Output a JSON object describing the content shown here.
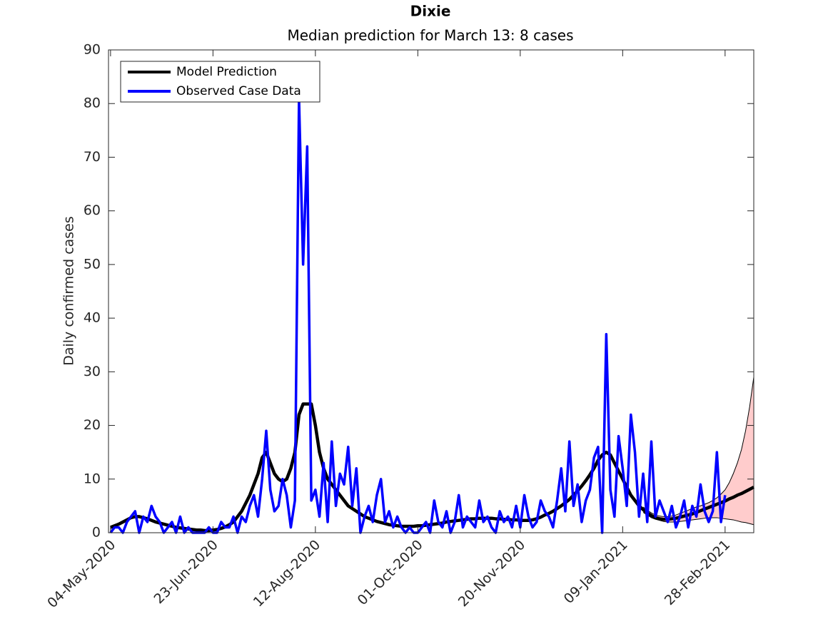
{
  "chart_data": {
    "type": "line",
    "title": "Dixie",
    "subtitle": "Median prediction for March 13: 8 cases",
    "ylabel": "Daily confirmed cases",
    "legend": "northwest",
    "xlim": [
      "2020-05-03",
      "2021-03-14"
    ],
    "xticks": [
      {
        "value": "2020-05-04",
        "label": "04-May-2020"
      },
      {
        "value": "2020-06-23",
        "label": "23-Jun-2020"
      },
      {
        "value": "2020-08-12",
        "label": "12-Aug-2020"
      },
      {
        "value": "2020-10-01",
        "label": "01-Oct-2020"
      },
      {
        "value": "2020-11-20",
        "label": "20-Nov-2020"
      },
      {
        "value": "2021-01-09",
        "label": "09-Jan-2021"
      },
      {
        "value": "2021-02-28",
        "label": "28-Feb-2021"
      }
    ],
    "ylim": [
      0,
      90
    ],
    "yticks": [
      0,
      10,
      20,
      30,
      40,
      50,
      60,
      70,
      80,
      90
    ],
    "x": [
      "2020-05-04",
      "2020-05-06",
      "2020-05-08",
      "2020-05-10",
      "2020-05-12",
      "2020-05-14",
      "2020-05-16",
      "2020-05-18",
      "2020-05-20",
      "2020-05-22",
      "2020-05-24",
      "2020-05-26",
      "2020-05-28",
      "2020-05-30",
      "2020-06-01",
      "2020-06-03",
      "2020-06-05",
      "2020-06-07",
      "2020-06-09",
      "2020-06-11",
      "2020-06-13",
      "2020-06-15",
      "2020-06-17",
      "2020-06-19",
      "2020-06-21",
      "2020-06-23",
      "2020-06-25",
      "2020-06-27",
      "2020-06-29",
      "2020-07-01",
      "2020-07-03",
      "2020-07-05",
      "2020-07-07",
      "2020-07-09",
      "2020-07-11",
      "2020-07-13",
      "2020-07-15",
      "2020-07-17",
      "2020-07-19",
      "2020-07-21",
      "2020-07-23",
      "2020-07-25",
      "2020-07-27",
      "2020-07-29",
      "2020-07-31",
      "2020-08-02",
      "2020-08-04",
      "2020-08-06",
      "2020-08-08",
      "2020-08-10",
      "2020-08-12",
      "2020-08-14",
      "2020-08-16",
      "2020-08-18",
      "2020-08-20",
      "2020-08-22",
      "2020-08-24",
      "2020-08-26",
      "2020-08-28",
      "2020-08-30",
      "2020-09-01",
      "2020-09-03",
      "2020-09-05",
      "2020-09-07",
      "2020-09-09",
      "2020-09-11",
      "2020-09-13",
      "2020-09-15",
      "2020-09-17",
      "2020-09-19",
      "2020-09-21",
      "2020-09-23",
      "2020-09-25",
      "2020-09-27",
      "2020-09-29",
      "2020-10-01",
      "2020-10-03",
      "2020-10-05",
      "2020-10-07",
      "2020-10-09",
      "2020-10-11",
      "2020-10-13",
      "2020-10-15",
      "2020-10-17",
      "2020-10-19",
      "2020-10-21",
      "2020-10-23",
      "2020-10-25",
      "2020-10-27",
      "2020-10-29",
      "2020-10-31",
      "2020-11-02",
      "2020-11-04",
      "2020-11-06",
      "2020-11-08",
      "2020-11-10",
      "2020-11-12",
      "2020-11-14",
      "2020-11-16",
      "2020-11-18",
      "2020-11-20",
      "2020-11-22",
      "2020-11-24",
      "2020-11-26",
      "2020-11-28",
      "2020-11-30",
      "2020-12-02",
      "2020-12-04",
      "2020-12-06",
      "2020-12-08",
      "2020-12-10",
      "2020-12-12",
      "2020-12-14",
      "2020-12-16",
      "2020-12-18",
      "2020-12-20",
      "2020-12-22",
      "2020-12-24",
      "2020-12-26",
      "2020-12-28",
      "2020-12-30",
      "2021-01-01",
      "2021-01-03",
      "2021-01-05",
      "2021-01-07",
      "2021-01-09",
      "2021-01-11",
      "2021-01-13",
      "2021-01-15",
      "2021-01-17",
      "2021-01-19",
      "2021-01-21",
      "2021-01-23",
      "2021-01-25",
      "2021-01-27",
      "2021-01-29",
      "2021-01-31",
      "2021-02-02",
      "2021-02-04",
      "2021-02-06",
      "2021-02-08",
      "2021-02-10",
      "2021-02-12",
      "2021-02-14",
      "2021-02-16",
      "2021-02-18",
      "2021-02-20",
      "2021-02-22",
      "2021-02-24",
      "2021-02-26",
      "2021-02-28",
      "2021-03-02",
      "2021-03-04",
      "2021-03-06",
      "2021-03-08",
      "2021-03-10",
      "2021-03-12",
      "2021-03-14"
    ],
    "series": [
      {
        "name": "Model Prediction",
        "color": "#000000",
        "values": [
          1,
          1.3,
          1.6,
          2,
          2.4,
          2.8,
          3,
          3,
          2.8,
          2.6,
          2.3,
          2,
          1.8,
          1.6,
          1.4,
          1.2,
          1,
          0.9,
          0.8,
          0.7,
          0.6,
          0.5,
          0.5,
          0.4,
          0.4,
          0.5,
          0.6,
          0.8,
          1.1,
          1.5,
          2,
          3,
          4,
          5.5,
          7,
          9,
          11,
          14,
          15,
          13,
          11,
          10,
          9.5,
          10,
          12,
          15,
          22,
          24,
          24,
          24,
          20,
          15,
          12,
          10,
          9,
          8,
          7,
          6,
          5,
          4.5,
          4,
          3.5,
          3,
          2.7,
          2.4,
          2.1,
          1.9,
          1.7,
          1.5,
          1.4,
          1.3,
          1.2,
          1.2,
          1.2,
          1.2,
          1.3,
          1.3,
          1.4,
          1.5,
          1.6,
          1.7,
          1.8,
          2,
          2.1,
          2.2,
          2.3,
          2.4,
          2.5,
          2.6,
          2.6,
          2.7,
          2.7,
          2.7,
          2.7,
          2.6,
          2.6,
          2.5,
          2.5,
          2.4,
          2.4,
          2.3,
          2.3,
          2.3,
          2.4,
          2.6,
          2.9,
          3.3,
          3.6,
          4,
          4.5,
          5,
          5.6,
          6.2,
          7,
          7.8,
          8.7,
          9.7,
          10.8,
          12,
          13.5,
          14.5,
          15,
          14.5,
          13,
          11.5,
          10,
          8.5,
          7,
          6,
          5,
          4.3,
          3.7,
          3.2,
          2.8,
          2.6,
          2.5,
          2.5,
          2.6,
          2.7,
          2.9,
          3.1,
          3.3,
          3.5,
          3.8,
          4.1,
          4.4,
          4.7,
          5,
          5.3,
          5.6,
          5.9,
          6.3,
          6.6,
          7,
          7.3,
          7.7,
          8.1,
          8.5
        ]
      },
      {
        "name": "Observed Case Data",
        "color": "#0000ff",
        "values": [
          0,
          1,
          1,
          0,
          2,
          3,
          4,
          0,
          3,
          2,
          5,
          3,
          2,
          0,
          1,
          2,
          0,
          3,
          0,
          1,
          0,
          0,
          0,
          0,
          1,
          0,
          0,
          2,
          1,
          1,
          3,
          0,
          3,
          2,
          5,
          7,
          3,
          10,
          19,
          8,
          4,
          5,
          10,
          7,
          1,
          6,
          81,
          50,
          72,
          6,
          8,
          3,
          13,
          2,
          17,
          5,
          11,
          9,
          16,
          5,
          12,
          0,
          3,
          5,
          2,
          7,
          10,
          2,
          4,
          1,
          3,
          1,
          0,
          1,
          0,
          0,
          1,
          2,
          0,
          6,
          2,
          1,
          4,
          0,
          2,
          7,
          1,
          3,
          2,
          1,
          6,
          2,
          3,
          1,
          0,
          4,
          2,
          3,
          1,
          5,
          1,
          7,
          3,
          1,
          2,
          6,
          4,
          3,
          1,
          6,
          12,
          4,
          17,
          5,
          9,
          2,
          6,
          8,
          14,
          16,
          0,
          37,
          8,
          3,
          18,
          12,
          5,
          22,
          15,
          3,
          11,
          2,
          17,
          3,
          6,
          4,
          2,
          5,
          1,
          3,
          6,
          1,
          5,
          3,
          9,
          4,
          2,
          4,
          15,
          2,
          7,
          null,
          null,
          null,
          null,
          null,
          null,
          null
        ]
      }
    ],
    "band": {
      "color": "#ffcccc",
      "lower": [
        null,
        null,
        null,
        null,
        null,
        null,
        null,
        null,
        null,
        null,
        null,
        null,
        null,
        null,
        null,
        null,
        null,
        null,
        null,
        null,
        null,
        null,
        null,
        null,
        null,
        null,
        null,
        null,
        null,
        null,
        null,
        null,
        null,
        null,
        null,
        null,
        null,
        null,
        null,
        null,
        null,
        null,
        null,
        null,
        null,
        null,
        null,
        null,
        null,
        null,
        null,
        null,
        null,
        null,
        null,
        null,
        null,
        null,
        null,
        null,
        null,
        null,
        null,
        null,
        null,
        null,
        null,
        null,
        null,
        null,
        null,
        null,
        null,
        null,
        null,
        null,
        null,
        null,
        null,
        null,
        null,
        null,
        null,
        null,
        null,
        null,
        null,
        null,
        null,
        null,
        null,
        null,
        null,
        null,
        null,
        null,
        null,
        null,
        null,
        null,
        null,
        null,
        null,
        null,
        null,
        null,
        null,
        null,
        null,
        null,
        null,
        null,
        null,
        null,
        null,
        null,
        null,
        null,
        null,
        null,
        null,
        null,
        null,
        null,
        null,
        null,
        null,
        null,
        null,
        null,
        3.8,
        3.3,
        2.8,
        2.5,
        2.3,
        2.1,
        2,
        2,
        2,
        2.1,
        2.2,
        2.3,
        2.4,
        2.5,
        2.6,
        2.7,
        2.8,
        2.8,
        2.8,
        2.7,
        2.6,
        2.5,
        2.4,
        2.2,
        2,
        1.9,
        1.7,
        1.5
      ],
      "upper": [
        null,
        null,
        null,
        null,
        null,
        null,
        null,
        null,
        null,
        null,
        null,
        null,
        null,
        null,
        null,
        null,
        null,
        null,
        null,
        null,
        null,
        null,
        null,
        null,
        null,
        null,
        null,
        null,
        null,
        null,
        null,
        null,
        null,
        null,
        null,
        null,
        null,
        null,
        null,
        null,
        null,
        null,
        null,
        null,
        null,
        null,
        null,
        null,
        null,
        null,
        null,
        null,
        null,
        null,
        null,
        null,
        null,
        null,
        null,
        null,
        null,
        null,
        null,
        null,
        null,
        null,
        null,
        null,
        null,
        null,
        null,
        null,
        null,
        null,
        null,
        null,
        null,
        null,
        null,
        null,
        null,
        null,
        null,
        null,
        null,
        null,
        null,
        null,
        null,
        null,
        null,
        null,
        null,
        null,
        null,
        null,
        null,
        null,
        null,
        null,
        null,
        null,
        null,
        null,
        null,
        null,
        null,
        null,
        null,
        null,
        null,
        null,
        null,
        null,
        null,
        null,
        null,
        null,
        null,
        null,
        null,
        null,
        null,
        null,
        null,
        null,
        null,
        null,
        null,
        null,
        4.8,
        4.2,
        3.7,
        3.3,
        3.1,
        3,
        3,
        3.1,
        3.3,
        3.6,
        3.9,
        4.2,
        4.5,
        4.8,
        5,
        5.3,
        5.6,
        6,
        6.5,
        7.2,
        8,
        9.3,
        11,
        13,
        15.5,
        19,
        23.5,
        29
      ]
    }
  }
}
